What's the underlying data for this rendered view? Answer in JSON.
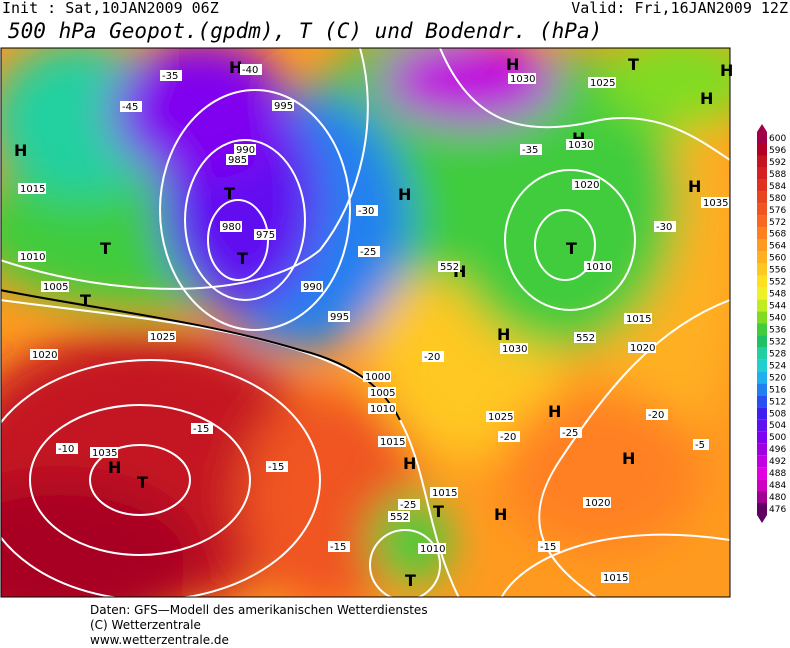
{
  "header": {
    "init": "Init : Sat,10JAN2009 06Z",
    "valid": "Valid: Fri,16JAN2009 12Z",
    "title": "500 hPa Geopot.(gpdm), T (C) und Bodendr. (hPa)"
  },
  "colorbar": {
    "levels": [
      600,
      596,
      592,
      588,
      584,
      580,
      576,
      572,
      568,
      564,
      560,
      556,
      552,
      548,
      544,
      540,
      536,
      532,
      528,
      524,
      520,
      516,
      512,
      508,
      504,
      500,
      496,
      492,
      488,
      484,
      480,
      476
    ],
    "colors": [
      "#a0004a",
      "#b40028",
      "#c41420",
      "#d42020",
      "#e03020",
      "#e84420",
      "#f05420",
      "#f86820",
      "#ff8020",
      "#ff9a20",
      "#ffb020",
      "#ffc820",
      "#ffe020",
      "#f0f028",
      "#c0ec20",
      "#80dc20",
      "#40cc3c",
      "#20c064",
      "#20d0a0",
      "#20d0d0",
      "#20b0f0",
      "#2080f0",
      "#2850f0",
      "#4020f0",
      "#6010f0",
      "#8000f0",
      "#a000e0",
      "#c000e0",
      "#e000e0",
      "#d000c0",
      "#a00090",
      "#600060"
    ]
  },
  "map_labels": [
    "H",
    "H",
    "T",
    "T",
    "T",
    "T",
    "H",
    "H",
    "H",
    "T",
    "H",
    "H",
    "T",
    "H",
    "H",
    "H",
    "H",
    "T",
    "H",
    "H",
    "T",
    "T",
    "H",
    "H",
    "1010",
    "1005",
    "1025",
    "1020",
    "995",
    "990",
    "985",
    "980",
    "975",
    "990",
    "995",
    "1000",
    "1005",
    "1010",
    "1015",
    "1030",
    "1025",
    "1020",
    "1030",
    "1035",
    "1015",
    "1010",
    "1030",
    "1015",
    "1025",
    "1020",
    "1010",
    "1015",
    "1020",
    "1015",
    "1035",
    "-45",
    "-40",
    "-35",
    "-30",
    "-25",
    "-20",
    "-15",
    "-10",
    "-15",
    "-15",
    "-20",
    "-25",
    "-30",
    "-35",
    "-25",
    "-15",
    "-20",
    "-5",
    "552",
    "552",
    "552"
  ],
  "footer": [
    "Daten: GFS—Modell des amerikanischen Wetterdienstes",
    "(C) Wetterzentrale",
    "www.wetterzentrale.de"
  ]
}
